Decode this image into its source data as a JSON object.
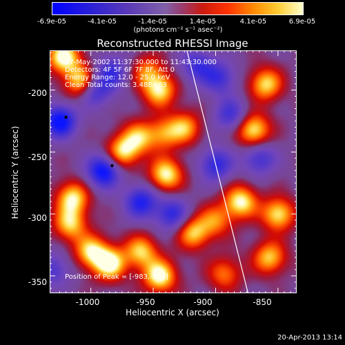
{
  "chart_data": {
    "type": "heatmap",
    "title": "Reconstructed RHESSI Image",
    "xlabel": "Heliocentric X (arcsec)",
    "ylabel": "Heliocentric Y (arcsec)",
    "xlim": [
      -1033,
      -835
    ],
    "ylim": [
      -364,
      -168
    ],
    "x_ticks": [
      "-1000",
      "-950",
      "-900",
      "-850"
    ],
    "y_ticks": [
      "-200",
      "-250",
      "-300",
      "-350"
    ],
    "colorbar": {
      "ticks": [
        "-6.9e-05",
        "-4.1e-05",
        "-1.4e-05",
        "1.4e-05",
        "4.1e-05",
        "6.9e-05"
      ],
      "range": [
        -6.9e-05,
        6.9e-05
      ],
      "units_text": "(photons cm⁻² s⁻¹ asec⁻²)"
    },
    "annotations": {
      "time": "27-May-2002 11:37:30.000 to 11:43:30.000",
      "detectors": "Detectors: 4F 5F 6F 7F 8F, Att 0",
      "energy": "Energy Range: 12.0 - 25.0 keV",
      "method": "Clean    Total counts: 3.48E+03",
      "peak": "Position of Peak = [-983,-350]"
    },
    "limb_line": [
      [
        -923,
        -168
      ],
      [
        -874,
        -364
      ]
    ],
    "minima_markers": [
      [
        -1020,
        -222
      ],
      [
        -983,
        -261
      ]
    ],
    "blobs": [
      {
        "x": -1022,
        "y": -173,
        "v": 1.0
      },
      {
        "x": -1008,
        "y": -193,
        "v": 0.9
      },
      {
        "x": -1015,
        "y": -287,
        "v": 0.9
      },
      {
        "x": -1017,
        "y": -308,
        "v": 0.8
      },
      {
        "x": -1000,
        "y": -330,
        "v": 0.85
      },
      {
        "x": -985,
        "y": -340,
        "v": 1.0
      },
      {
        "x": -960,
        "y": -330,
        "v": 0.8
      },
      {
        "x": -945,
        "y": -350,
        "v": 1.0
      },
      {
        "x": -975,
        "y": -250,
        "v": 0.85
      },
      {
        "x": -962,
        "y": -238,
        "v": 0.7
      },
      {
        "x": -940,
        "y": -268,
        "v": 0.95
      },
      {
        "x": -942,
        "y": -235,
        "v": 0.6
      },
      {
        "x": -925,
        "y": -230,
        "v": 0.7
      },
      {
        "x": -945,
        "y": -200,
        "v": 0.85
      },
      {
        "x": -955,
        "y": -185,
        "v": 0.6
      },
      {
        "x": -918,
        "y": -315,
        "v": 0.8
      },
      {
        "x": -900,
        "y": -305,
        "v": 0.6
      },
      {
        "x": -880,
        "y": -290,
        "v": 0.95
      },
      {
        "x": -870,
        "y": -232,
        "v": 0.95
      },
      {
        "x": -860,
        "y": -195,
        "v": 0.85
      },
      {
        "x": -850,
        "y": -300,
        "v": 0.9
      },
      {
        "x": -857,
        "y": -335,
        "v": 0.8
      },
      {
        "x": -893,
        "y": -348,
        "v": 0.6
      },
      {
        "x": -997,
        "y": -200,
        "v": -0.7
      },
      {
        "x": -1025,
        "y": -225,
        "v": -1.0
      },
      {
        "x": -990,
        "y": -265,
        "v": -1.0
      },
      {
        "x": -960,
        "y": -290,
        "v": -0.8
      },
      {
        "x": -935,
        "y": -300,
        "v": -0.7
      },
      {
        "x": -900,
        "y": -260,
        "v": -0.7
      },
      {
        "x": -888,
        "y": -220,
        "v": -0.6
      },
      {
        "x": -897,
        "y": -190,
        "v": -0.6
      },
      {
        "x": -983,
        "y": -185,
        "v": -0.6
      },
      {
        "x": -915,
        "y": -180,
        "v": -0.6
      },
      {
        "x": -865,
        "y": -255,
        "v": -0.6
      },
      {
        "x": -1030,
        "y": -345,
        "v": -0.5
      }
    ]
  },
  "footer": {
    "timestamp": "20-Apr-2013 13:14"
  }
}
